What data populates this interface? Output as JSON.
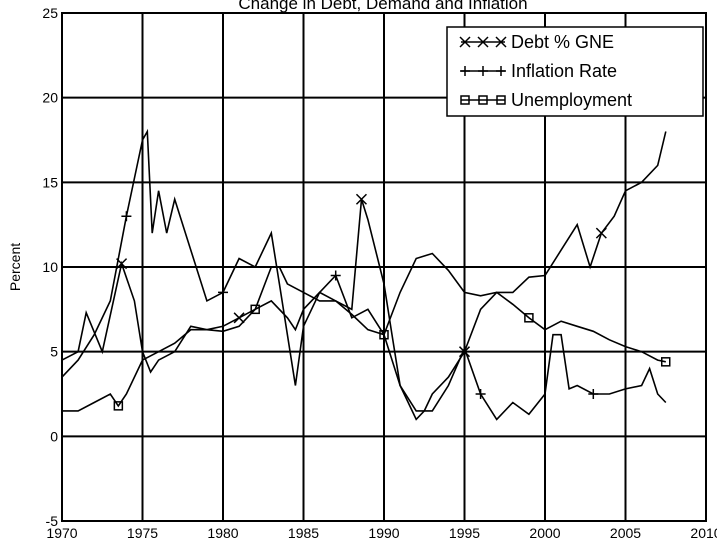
{
  "chart_data": {
    "type": "line",
    "title": "Change in Debt, Demand and Inflation",
    "ylabel": "Percent",
    "xlim": [
      1970,
      2010
    ],
    "xticks": [
      1970,
      1975,
      1980,
      1985,
      1990,
      1995,
      2000,
      2005,
      2010
    ],
    "ylim": [
      -5,
      25
    ],
    "yticks": [
      -5,
      0,
      5,
      10,
      15,
      20,
      25
    ],
    "grid": true,
    "legend": "upper right",
    "series": [
      {
        "name": "Debt  % GNE",
        "color": "#000000",
        "marker": "x",
        "x": [
          1970,
          1971,
          1971.5,
          1972.5,
          1973.7,
          1974.5,
          1975,
          1975.5,
          1976,
          1977,
          1978,
          1979,
          1980,
          1981,
          1982,
          1983,
          1984,
          1984.5,
          1985,
          1986,
          1987,
          1988,
          1988.6,
          1989,
          1990,
          1990.5,
          1991,
          1992,
          1992.5,
          1993,
          1994,
          1995,
          1996,
          1997,
          1998,
          1999,
          2000,
          2001,
          2002,
          2002.8,
          2003.5,
          2004.3,
          2005,
          2006,
          2007,
          2007.5
        ],
        "values": [
          4.5,
          5,
          7.3,
          5,
          10.2,
          8,
          5,
          3.8,
          4.5,
          5,
          6.5,
          6.3,
          6.5,
          7,
          7.5,
          8,
          7,
          6.3,
          7.5,
          8.5,
          8,
          7.5,
          14,
          12.8,
          9,
          6,
          3,
          1,
          1.5,
          2.5,
          3.5,
          5,
          7.5,
          8.5,
          8.5,
          9.4,
          9.5,
          11,
          12.5,
          10,
          12,
          13,
          14.5,
          15,
          16,
          18
        ]
      },
      {
        "name": "Inflation Rate",
        "color": "#000000",
        "marker": "+",
        "x": [
          1970,
          1971,
          1972,
          1973,
          1974,
          1975,
          1975.3,
          1975.6,
          1976,
          1976.5,
          1977,
          1978,
          1979,
          1980,
          1981,
          1982,
          1983,
          1983.5,
          1984,
          1984.5,
          1985,
          1986,
          1987,
          1988,
          1989,
          1990,
          1991,
          1992,
          1993,
          1994,
          1995,
          1996,
          1997,
          1998,
          1999,
          2000,
          2000.5,
          2001,
          2001.5,
          2002,
          2003,
          2004,
          2005,
          2006,
          2006.5,
          2007,
          2007.5
        ],
        "values": [
          3.5,
          4.5,
          6,
          8,
          13,
          17.5,
          18,
          12,
          14.5,
          12,
          14,
          11,
          8,
          8.5,
          10.5,
          10,
          12,
          9,
          6,
          3,
          6.5,
          8.5,
          9.5,
          7,
          7.5,
          6,
          3,
          1.5,
          1.5,
          3,
          5.2,
          2.5,
          1,
          2,
          1.3,
          2.5,
          6,
          6,
          2.8,
          3,
          2.5,
          2.5,
          2.8,
          3,
          4,
          2.5,
          2
        ]
      },
      {
        "name": "Unemployment",
        "color": "#000000",
        "marker": "square",
        "x": [
          1970,
          1971,
          1972,
          1973,
          1973.5,
          1974,
          1975,
          1976,
          1977,
          1978,
          1979,
          1980,
          1981,
          1982,
          1983,
          1983.5,
          1984,
          1985,
          1986,
          1987,
          1988,
          1989,
          1990,
          1991,
          1992,
          1993,
          1994,
          1995,
          1996,
          1997,
          1998,
          1999,
          2000,
          2001,
          2002,
          2003,
          2004,
          2005,
          2006,
          2007,
          2007.5
        ],
        "values": [
          1.5,
          1.5,
          2,
          2.5,
          1.8,
          2.5,
          4.5,
          5,
          5.5,
          6.3,
          6.3,
          6.2,
          6.5,
          7.5,
          10,
          10,
          9,
          8.5,
          8,
          8,
          7.2,
          6.3,
          6,
          8.5,
          10.5,
          10.8,
          9.8,
          8.5,
          8.3,
          8.5,
          7.8,
          7,
          6.3,
          6.8,
          6.5,
          6.2,
          5.7,
          5.3,
          5,
          4.5,
          4.4
        ]
      }
    ]
  }
}
